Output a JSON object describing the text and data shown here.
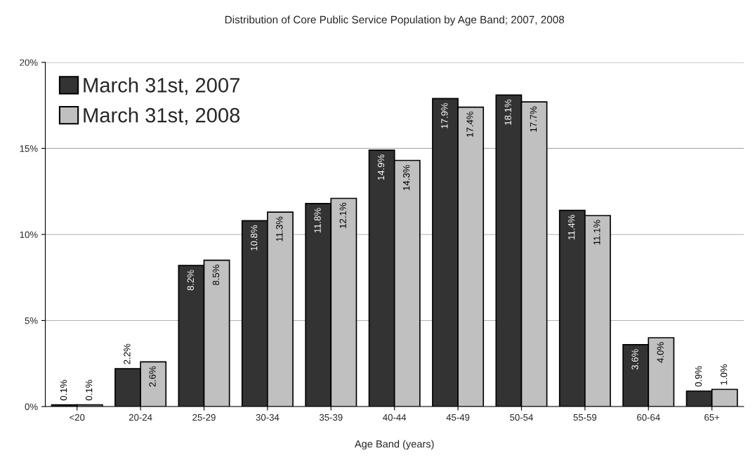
{
  "chart_data": {
    "type": "bar",
    "title": "Distribution of Core Public Service Population by Age Band; 2007, 2008",
    "xlabel": "Age Band (years)",
    "categories": [
      "<20",
      "20-24",
      "25-29",
      "30-34",
      "35-39",
      "40-44",
      "45-49",
      "50-54",
      "55-59",
      "60-64",
      "65+"
    ],
    "series": [
      {
        "name": "March 31st, 2007",
        "color": "#333333",
        "values": [
          0.1,
          2.2,
          8.2,
          10.8,
          11.8,
          14.9,
          17.9,
          18.1,
          11.4,
          3.6,
          0.9
        ],
        "value_labels": [
          "0.1%",
          "2.2%",
          "8.2%",
          "10.8%",
          "11.8%",
          "14.9%",
          "17.9%",
          "18.1%",
          "11.4%",
          "3.6%",
          "0.9%"
        ]
      },
      {
        "name": "March 31st, 2008",
        "color": "#c0c0c0",
        "values": [
          0.1,
          2.6,
          8.5,
          11.3,
          12.1,
          14.3,
          17.4,
          17.7,
          11.1,
          4.0,
          1.0
        ],
        "value_labels": [
          "0.1%",
          "2.6%",
          "8.5%",
          "11.3%",
          "12.1%",
          "14.3%",
          "17.4%",
          "17.7%",
          "11.1%",
          "4.0%",
          "1.0%"
        ]
      }
    ],
    "ylim": [
      0,
      20
    ],
    "yticks": [
      {
        "value": 0,
        "label": "0%"
      },
      {
        "value": 5,
        "label": "5%"
      },
      {
        "value": 10,
        "label": "10%"
      },
      {
        "value": 15,
        "label": "15%"
      },
      {
        "value": 20,
        "label": "20%"
      }
    ],
    "grid": "y",
    "legend": "top left"
  }
}
